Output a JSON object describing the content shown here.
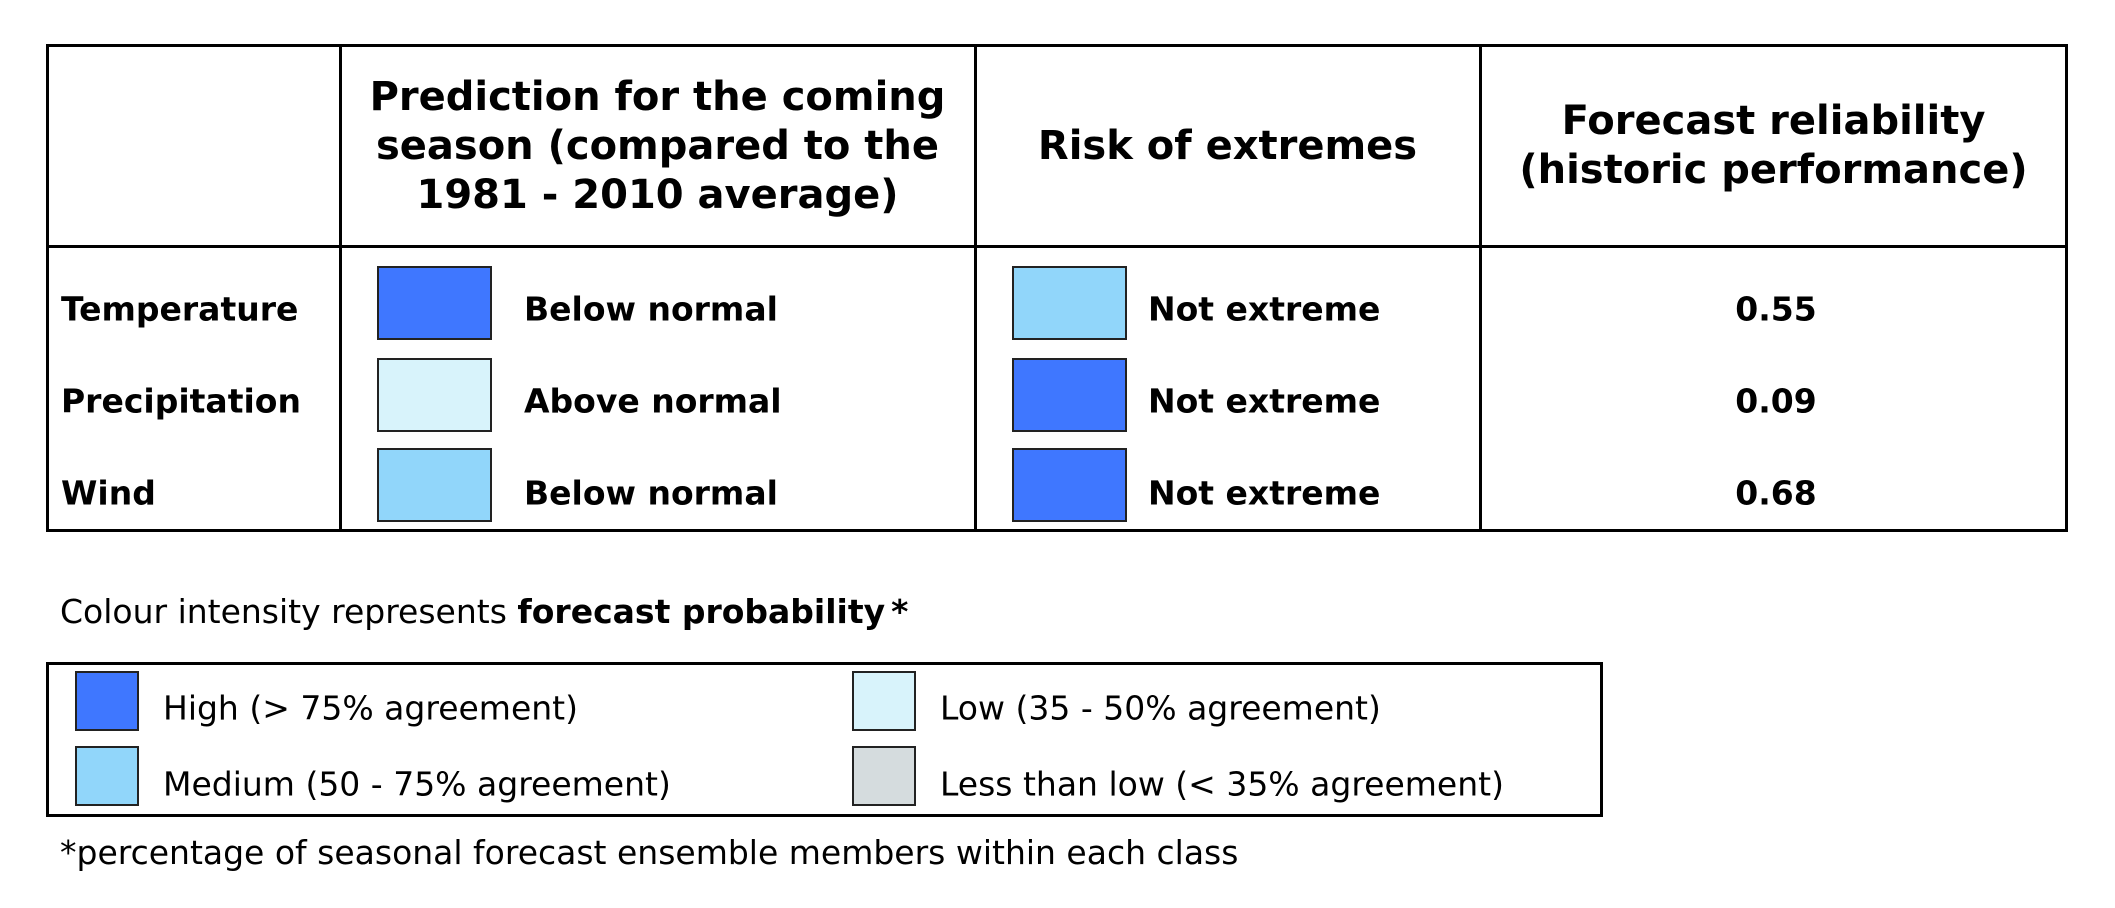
{
  "table": {
    "headers": {
      "prediction": "Prediction for the coming season (compared to the 1981 - 2010 average)",
      "extremes": "Risk of extremes",
      "reliability": "Forecast reliability (historic performance)"
    },
    "rows": [
      {
        "label": "Temperature",
        "prediction": "Below normal",
        "prediction_color": "#3f77ff",
        "extreme": "Not extreme",
        "extreme_color": "#91d6fa",
        "reliability": "0.55"
      },
      {
        "label": "Precipitation",
        "prediction": "Above normal",
        "prediction_color": "#d8f3fb",
        "extreme": "Not extreme",
        "extreme_color": "#3f77ff",
        "reliability": "0.09"
      },
      {
        "label": "Wind",
        "prediction": "Below normal",
        "prediction_color": "#91d6fa",
        "extreme": "Not extreme",
        "extreme_color": "#3f77ff",
        "reliability": "0.68"
      }
    ]
  },
  "caption": {
    "prefix": "Colour intensity represents ",
    "bold": "forecast probability",
    "suffix": "*"
  },
  "legend": {
    "items": [
      {
        "label": "High (> 75% agreement)",
        "color": "#3f77ff"
      },
      {
        "label": "Medium (50 - 75% agreement)",
        "color": "#91d6fa"
      },
      {
        "label": "Low (35 - 50% agreement)",
        "color": "#d8f3fb"
      },
      {
        "label": "Less than low (< 35% agreement)",
        "color": "#d5dcde"
      }
    ]
  },
  "footnote": "*percentage of seasonal forecast ensemble members within each class"
}
